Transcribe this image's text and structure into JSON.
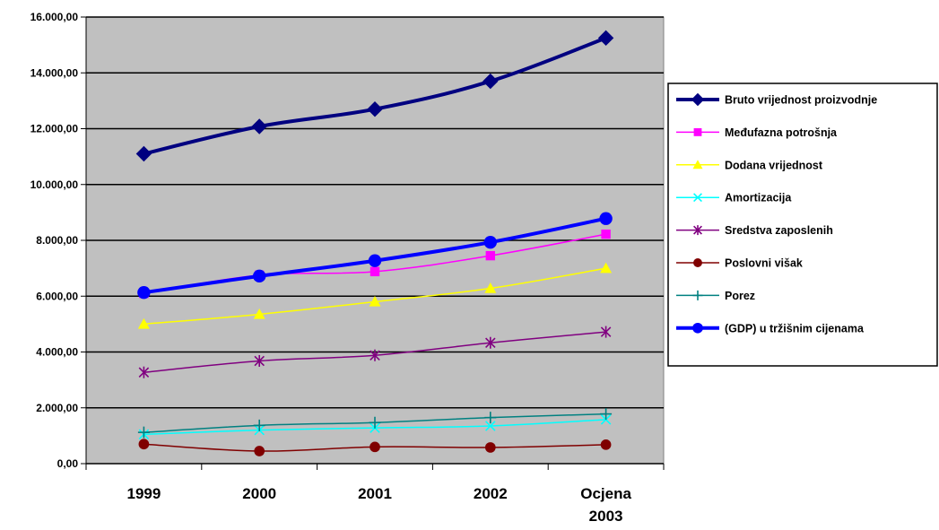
{
  "chart_data": {
    "type": "line",
    "title": "",
    "xlabel": "",
    "ylabel": "",
    "categories": [
      "1999",
      "2000",
      "2001",
      "2002",
      "Ocjena 2003"
    ],
    "category_lines": [
      [
        "1999"
      ],
      [
        "2000"
      ],
      [
        "2001"
      ],
      [
        "2002"
      ],
      [
        "Ocjena",
        "2003"
      ]
    ],
    "ylim": [
      0,
      16000
    ],
    "y_ticks": [
      0,
      2000,
      4000,
      6000,
      8000,
      10000,
      12000,
      14000,
      16000
    ],
    "y_tick_labels": [
      "0,00",
      "2.000,00",
      "4.000,00",
      "6.000,00",
      "8.000,00",
      "10.000,00",
      "12.000,00",
      "14.000,00",
      "16.000,00"
    ],
    "grid": "horizontal",
    "plot_background": "#c0c0c0",
    "legend_position": "right",
    "series": [
      {
        "name": "Bruto vrijednost proizvodnje",
        "color": "#000080",
        "marker": "diamond",
        "width": 4,
        "values": [
          11100,
          12080,
          12700,
          13700,
          15250
        ]
      },
      {
        "name": "Međufazna potrošnja",
        "color": "#ff00ff",
        "marker": "square",
        "width": 1.5,
        "values": [
          6100,
          6750,
          6880,
          7450,
          8220
        ]
      },
      {
        "name": "Dodana vrijednost",
        "color": "#ffff00",
        "marker": "triangle",
        "width": 1.5,
        "values": [
          5000,
          5350,
          5800,
          6280,
          7000
        ]
      },
      {
        "name": "Amortizacija",
        "color": "#00ffff",
        "marker": "x",
        "width": 1.5,
        "values": [
          1050,
          1200,
          1280,
          1350,
          1580
        ]
      },
      {
        "name": "Sredstva zaposlenih",
        "color": "#800080",
        "marker": "asterisk",
        "width": 1.5,
        "values": [
          3270,
          3680,
          3880,
          4330,
          4720
        ]
      },
      {
        "name": "Poslovni višak",
        "color": "#800000",
        "marker": "circle",
        "width": 1.5,
        "values": [
          700,
          450,
          600,
          580,
          680
        ]
      },
      {
        "name": "Porez",
        "color": "#008080",
        "marker": "plus",
        "width": 1.5,
        "values": [
          1120,
          1370,
          1470,
          1650,
          1780
        ]
      },
      {
        "name": "(GDP) u tržišnim  cijenama",
        "color": "#0000ff",
        "marker": "circle",
        "width": 4,
        "values": [
          6130,
          6720,
          7270,
          7930,
          8780
        ]
      }
    ]
  }
}
